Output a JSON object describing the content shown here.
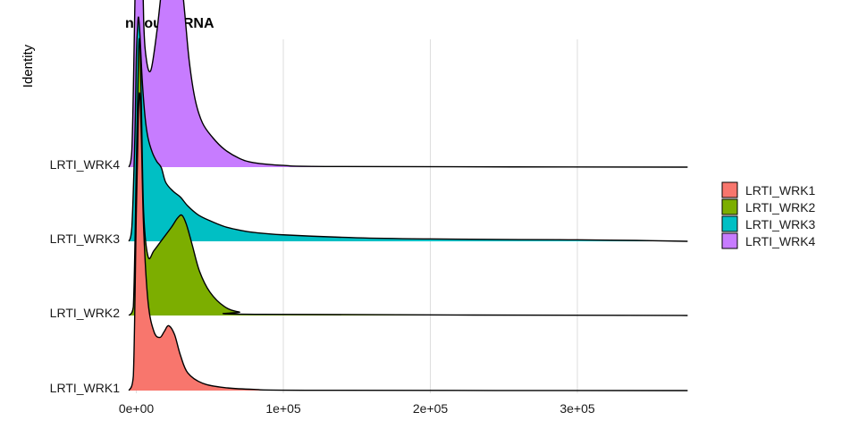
{
  "chart_data": {
    "type": "ridgeline",
    "title": "nCount_RNA",
    "xlabel": "",
    "ylabel": "Identity",
    "xlim": [
      -5000,
      375000
    ],
    "xticks": [
      {
        "value": 0,
        "label": "0e+00"
      },
      {
        "value": 100000,
        "label": "1e+05"
      },
      {
        "value": 200000,
        "label": "2e+05"
      },
      {
        "value": 300000,
        "label": "3e+05"
      }
    ],
    "categories": [
      "LRTI_WRK1",
      "LRTI_WRK2",
      "LRTI_WRK3",
      "LRTI_WRK4"
    ],
    "grid": true,
    "legend_position": "right",
    "series": [
      {
        "name": "LRTI_WRK1",
        "color": "#F8766D",
        "points": [
          [
            -5000,
            0
          ],
          [
            -2000,
            0.05
          ],
          [
            0,
            0.6
          ],
          [
            1500,
            0.95
          ],
          [
            2500,
            1.0
          ],
          [
            3500,
            0.85
          ],
          [
            5000,
            0.55
          ],
          [
            8000,
            0.3
          ],
          [
            12000,
            0.2
          ],
          [
            16000,
            0.18
          ],
          [
            19000,
            0.2
          ],
          [
            22000,
            0.22
          ],
          [
            26000,
            0.19
          ],
          [
            30000,
            0.12
          ],
          [
            35000,
            0.06
          ],
          [
            45000,
            0.025
          ],
          [
            60000,
            0.01
          ],
          [
            80000,
            0.004
          ],
          [
            120000,
            0.001
          ],
          [
            375000,
            0
          ]
        ]
      },
      {
        "name": "LRTI_WRK2",
        "color": "#7CAE00",
        "points": [
          [
            -5000,
            0
          ],
          [
            -2000,
            0.03
          ],
          [
            0,
            0.5
          ],
          [
            1500,
            0.88
          ],
          [
            2500,
            0.92
          ],
          [
            3500,
            0.7
          ],
          [
            5000,
            0.35
          ],
          [
            8000,
            0.2
          ],
          [
            12000,
            0.22
          ],
          [
            18000,
            0.26
          ],
          [
            24000,
            0.3
          ],
          [
            28000,
            0.33
          ],
          [
            31000,
            0.34
          ],
          [
            34000,
            0.31
          ],
          [
            38000,
            0.24
          ],
          [
            43000,
            0.15
          ],
          [
            50000,
            0.08
          ],
          [
            60000,
            0.03
          ],
          [
            70000,
            0.012
          ],
          [
            85000,
            0.004
          ],
          [
            375000,
            0
          ]
        ]
      },
      {
        "name": "LRTI_WRK3",
        "color": "#00BFC4",
        "points": [
          [
            -5000,
            0
          ],
          [
            -3000,
            0.05
          ],
          [
            -1000,
            0.35
          ],
          [
            0,
            0.62
          ],
          [
            800,
            0.72
          ],
          [
            1500,
            0.76
          ],
          [
            2500,
            0.7
          ],
          [
            4000,
            0.55
          ],
          [
            6000,
            0.42
          ],
          [
            8000,
            0.35
          ],
          [
            11000,
            0.3
          ],
          [
            14000,
            0.27
          ],
          [
            17000,
            0.25
          ],
          [
            20000,
            0.2
          ],
          [
            25000,
            0.17
          ],
          [
            30000,
            0.15
          ],
          [
            35000,
            0.12
          ],
          [
            42000,
            0.09
          ],
          [
            50000,
            0.07
          ],
          [
            60000,
            0.05
          ],
          [
            70000,
            0.038
          ],
          [
            80000,
            0.03
          ],
          [
            100000,
            0.022
          ],
          [
            150000,
            0.012
          ],
          [
            200000,
            0.008
          ],
          [
            260000,
            0.006
          ],
          [
            300000,
            0.005
          ],
          [
            340000,
            0.003
          ],
          [
            375000,
            0
          ]
        ]
      },
      {
        "name": "LRTI_WRK4",
        "color": "#C77CFF",
        "points": [
          [
            -5000,
            0
          ],
          [
            -3000,
            0.06
          ],
          [
            -1500,
            0.4
          ],
          [
            0,
            0.85
          ],
          [
            1000,
            1.2
          ],
          [
            1700,
            1.3
          ],
          [
            2500,
            1.22
          ],
          [
            3500,
            0.9
          ],
          [
            5000,
            0.5
          ],
          [
            7000,
            0.36
          ],
          [
            10000,
            0.33
          ],
          [
            14000,
            0.46
          ],
          [
            18000,
            0.64
          ],
          [
            21000,
            0.76
          ],
          [
            24000,
            0.8
          ],
          [
            27000,
            0.77
          ],
          [
            30000,
            0.67
          ],
          [
            33000,
            0.52
          ],
          [
            36000,
            0.36
          ],
          [
            40000,
            0.23
          ],
          [
            45000,
            0.15
          ],
          [
            52000,
            0.1
          ],
          [
            60000,
            0.06
          ],
          [
            70000,
            0.03
          ],
          [
            80000,
            0.015
          ],
          [
            100000,
            0.006
          ],
          [
            140000,
            0.002
          ],
          [
            375000,
            0
          ]
        ]
      }
    ]
  }
}
